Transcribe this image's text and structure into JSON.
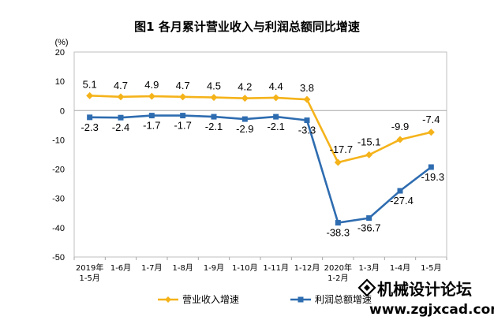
{
  "chart_data": {
    "type": "line",
    "title": "图1  各月累计营业收入与利润总额同比增速",
    "ylabel": "(%)",
    "ylim": [
      -50,
      20
    ],
    "yticks": [
      "20",
      "10",
      "0",
      "-10",
      "-20",
      "-30",
      "-40",
      "-50"
    ],
    "categories": [
      [
        "2019年",
        "1-5月"
      ],
      [
        "1-6月"
      ],
      [
        "1-7月"
      ],
      [
        "1-8月"
      ],
      [
        "1-9月"
      ],
      [
        "1-10月"
      ],
      [
        "1-11月"
      ],
      [
        "1-12月"
      ],
      [
        "2020年",
        "1-2月"
      ],
      [
        "1-3月"
      ],
      [
        "1-4月"
      ],
      [
        "1-5月"
      ]
    ],
    "series": [
      {
        "name": "营业收入增速",
        "color": "#F5B31A",
        "values": [
          5.1,
          4.7,
          4.9,
          4.7,
          4.5,
          4.2,
          4.4,
          3.8,
          -17.7,
          -15.1,
          -9.9,
          -7.4
        ],
        "labels": [
          "5.1",
          "4.7",
          "4.9",
          "4.7",
          "4.5",
          "4.2",
          "4.4",
          "3.8",
          "-17.7",
          "-15.1",
          "-9.9",
          "-7.4"
        ]
      },
      {
        "name": "利润总额增速",
        "color": "#2E6CB0",
        "values": [
          -2.3,
          -2.4,
          -1.7,
          -1.7,
          -2.1,
          -2.9,
          -2.1,
          -3.3,
          -38.3,
          -36.7,
          -27.4,
          -19.3
        ],
        "labels": [
          "-2.3",
          "-2.4",
          "-1.7",
          "-1.7",
          "-2.1",
          "-2.9",
          "-2.1",
          "-3.3",
          "-38.3",
          "-36.7",
          "-27.4",
          "-19.3"
        ]
      }
    ],
    "legend_position": "bottom",
    "grid": false
  },
  "watermark": {
    "text": "机械设计论坛",
    "url": "www.zgjxcad.com"
  }
}
